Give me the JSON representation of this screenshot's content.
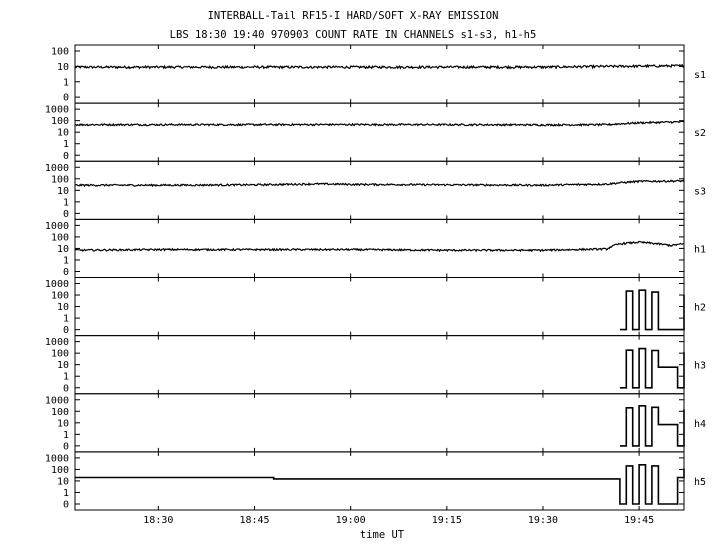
{
  "chart_data": {
    "type": "line",
    "title": "INTERBALL-Tail RF15-I HARD/SOFT X-RAY EMISSION",
    "subtitle": "LBS 18:30 19:40 970903  COUNT RATE IN CHANNELS s1-s3, h1-h5",
    "xlabel": "time UT",
    "x_ticks": [
      "18:30",
      "18:45",
      "19:00",
      "19:15",
      "19:30",
      "19:45"
    ],
    "xlim": [
      "18:17",
      "19:52"
    ],
    "y_scale": "log",
    "grid": false,
    "panels": [
      {
        "name": "s1",
        "y_ticks": [
          "100",
          "10",
          "1",
          "0"
        ],
        "series": [
          {
            "x": [
              "18:17",
              "18:30",
              "18:45",
              "19:00",
              "19:15",
              "19:30",
              "19:40",
              "19:52"
            ],
            "y": [
              9,
              9,
              9,
              9,
              9,
              9,
              10,
              11
            ]
          }
        ]
      },
      {
        "name": "s2",
        "y_ticks": [
          "1000",
          "100",
          "10",
          "1",
          "0"
        ],
        "series": [
          {
            "x": [
              "18:17",
              "18:30",
              "18:45",
              "19:00",
              "19:15",
              "19:30",
              "19:40",
              "19:45",
              "19:52"
            ],
            "y": [
              45,
              45,
              45,
              46,
              45,
              43,
              45,
              65,
              80
            ]
          }
        ]
      },
      {
        "name": "s3",
        "y_ticks": [
          "1000",
          "100",
          "10",
          "1",
          "0"
        ],
        "series": [
          {
            "x": [
              "18:17",
              "18:30",
              "18:45",
              "18:55",
              "19:00",
              "19:15",
              "19:30",
              "19:40",
              "19:45",
              "19:52"
            ],
            "y": [
              28,
              28,
              30,
              36,
              33,
              30,
              28,
              35,
              60,
              65
            ]
          }
        ]
      },
      {
        "name": "h1",
        "y_ticks": [
          "1000",
          "100",
          "10",
          "1",
          "0"
        ],
        "series": [
          {
            "x": [
              "18:17",
              "18:30",
              "18:45",
              "18:55",
              "19:00",
              "19:15",
              "19:30",
              "19:40",
              "19:42",
              "19:45",
              "19:50",
              "19:52"
            ],
            "y": [
              7,
              8,
              8,
              8,
              8,
              7,
              7,
              9,
              25,
              35,
              18,
              25
            ]
          }
        ]
      },
      {
        "name": "h2",
        "y_ticks": [
          "1000",
          "100",
          "10",
          "1",
          "0"
        ],
        "series": [
          {
            "x": [
              "19:42",
              "19:43",
              "19:44",
              "19:45",
              "19:46",
              "19:47",
              "19:48",
              "19:51",
              "19:52"
            ],
            "y": [
              0,
              220,
              0,
              260,
              0,
              180,
              0,
              0,
              100
            ]
          }
        ]
      },
      {
        "name": "h3",
        "y_ticks": [
          "1000",
          "100",
          "10",
          "1",
          "0"
        ],
        "series": [
          {
            "x": [
              "19:42",
              "19:43",
              "19:44",
              "19:45",
              "19:46",
              "19:47",
              "19:48",
              "19:50",
              "19:51",
              "19:52"
            ],
            "y": [
              0,
              180,
              0,
              250,
              0,
              170,
              6,
              6,
              0,
              120
            ]
          }
        ]
      },
      {
        "name": "h4",
        "y_ticks": [
          "1000",
          "100",
          "10",
          "1",
          "0"
        ],
        "series": [
          {
            "x": [
              "19:42",
              "19:43",
              "19:44",
              "19:45",
              "19:46",
              "19:47",
              "19:48",
              "19:50",
              "19:51",
              "19:52"
            ],
            "y": [
              0,
              200,
              0,
              300,
              0,
              220,
              7,
              7,
              0,
              150
            ]
          }
        ]
      },
      {
        "name": "h5",
        "y_ticks": [
          "1000",
          "100",
          "10",
          "1",
          "0"
        ],
        "series": [
          {
            "x": [
              "18:17",
              "18:47",
              "18:48",
              "19:41",
              "19:42",
              "19:43",
              "19:44",
              "19:45",
              "19:46",
              "19:47",
              "19:48",
              "19:51",
              "19:52"
            ],
            "y": [
              20,
              20,
              15,
              15,
              0,
              200,
              0,
              250,
              0,
              200,
              0,
              20,
              120
            ]
          }
        ]
      }
    ]
  }
}
